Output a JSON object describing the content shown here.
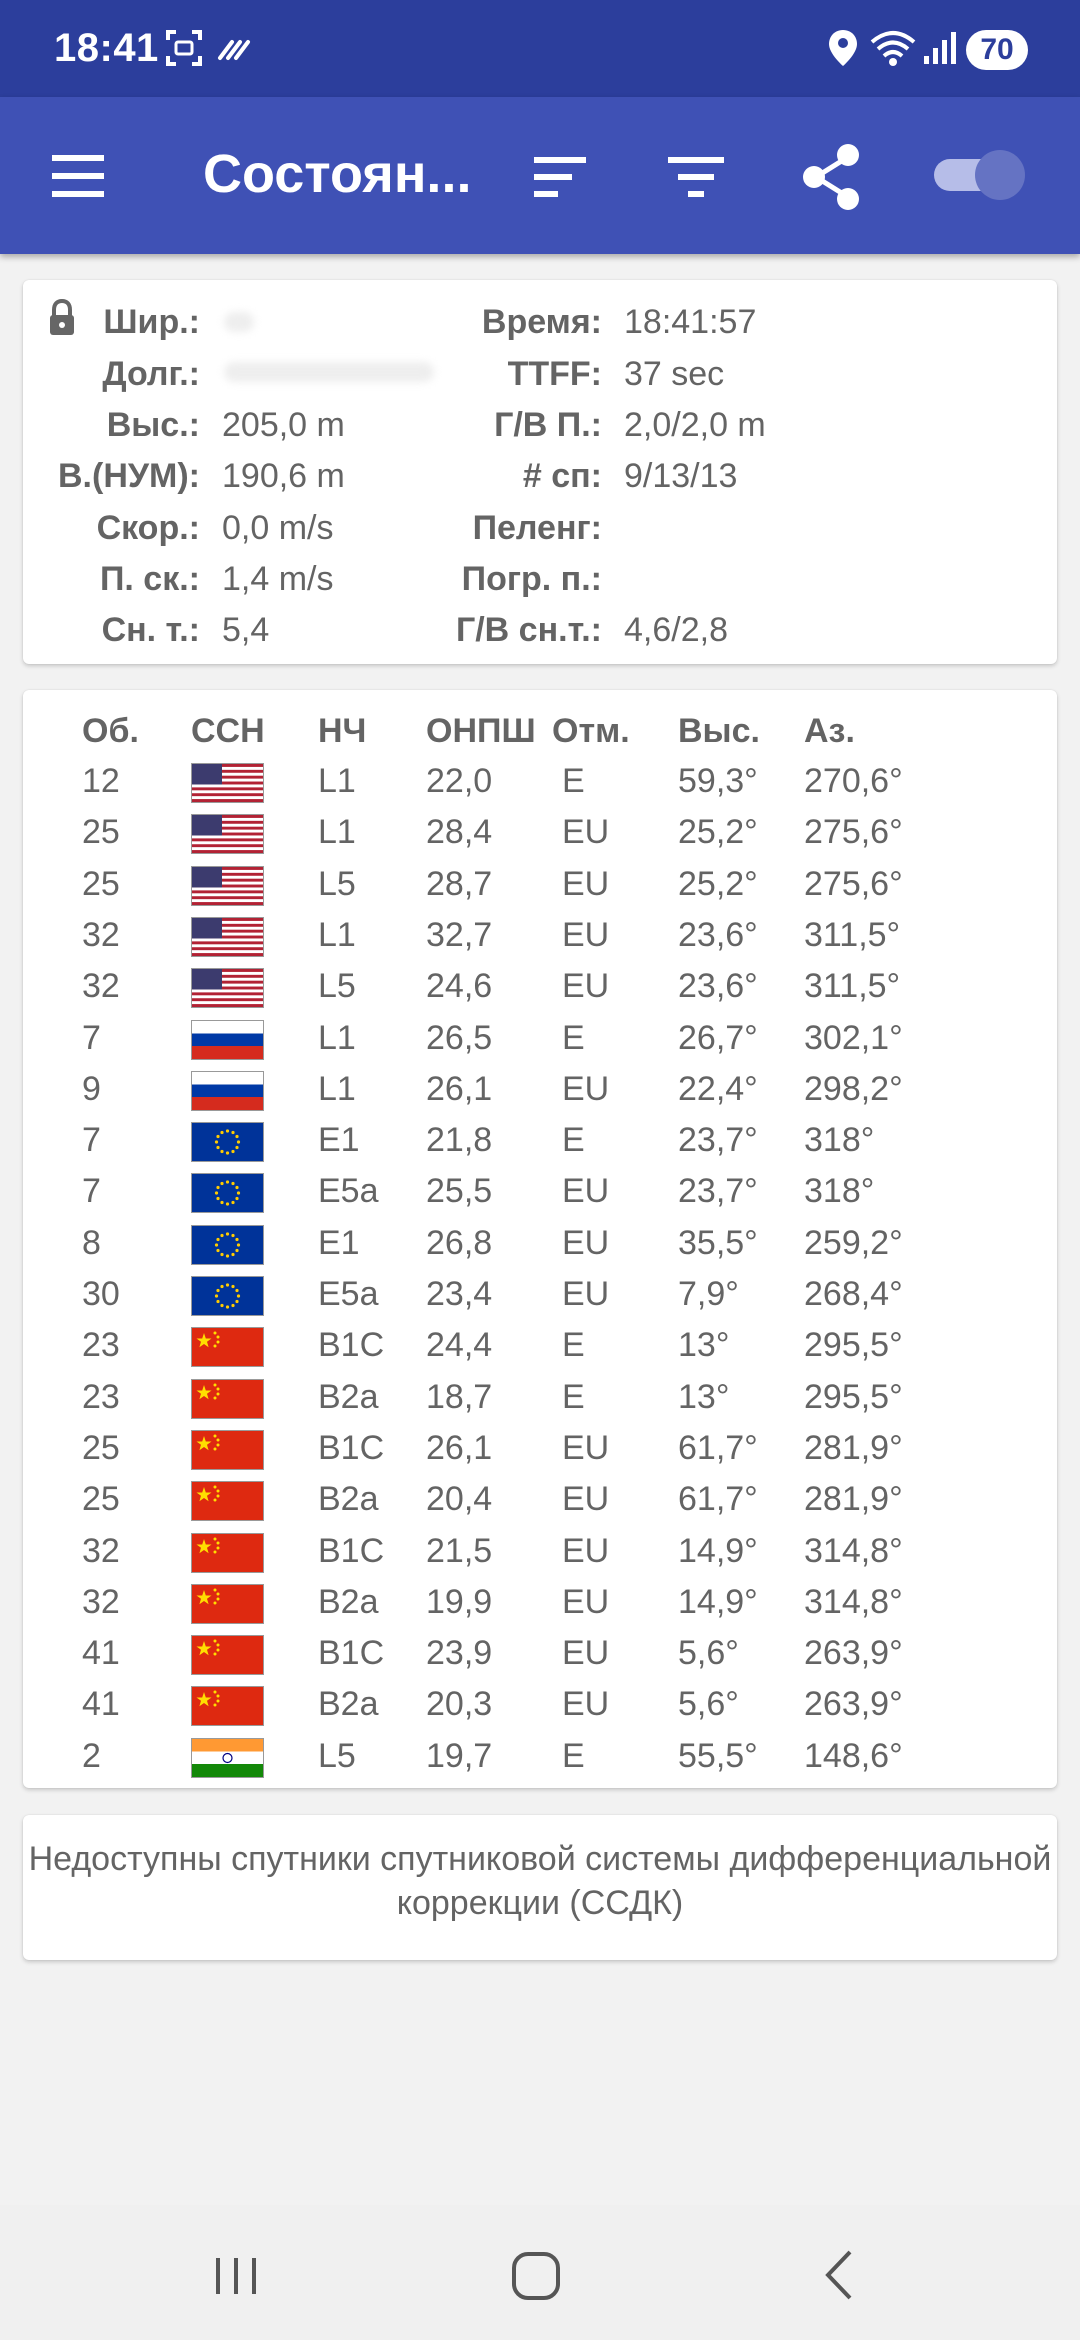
{
  "status_bar": {
    "time": "18:41",
    "battery": "70"
  },
  "app_bar": {
    "title": "Состоян..."
  },
  "status": {
    "lat_label": "Шир.:",
    "lat_value": "",
    "lon_label": "Долг.:",
    "lon_value": "",
    "alt_label": "Выс.:",
    "alt_value": "205,0 m",
    "msl_label": "В.(НУМ):",
    "msl_value": "190,6 m",
    "speed_label": "Скор.:",
    "speed_value": "0,0 m/s",
    "speed_acc_label": "П. ск.:",
    "speed_acc_value": "1,4 m/s",
    "pdop_label": "Сн. т.:",
    "pdop_value": "5,4",
    "time_label": "Время:",
    "time_value": "18:41:57",
    "ttff_label": "TTFF:",
    "ttff_value": "37 sec",
    "hv_acc_label": "Г/В П.:",
    "hv_acc_value": "2,0/2,0 m",
    "sats_label": "# сп:",
    "sats_value": "9/13/13",
    "bearing_label": "Пеленг:",
    "bearing_value": "",
    "bearing_acc_label": "Погр. п.:",
    "bearing_acc_value": "",
    "hv_dop_label": "Г/В сн.т.:",
    "hv_dop_value": "4,6/2,8"
  },
  "table": {
    "headers": {
      "id": "Об.",
      "gnss": "ССН",
      "cf": "НЧ",
      "cn0": "ОНПШ",
      "flags": "Отм.",
      "elev": "Выс.",
      "azim": "Аз."
    },
    "rows": [
      {
        "id": "12",
        "flag": "us",
        "cf": "L1",
        "cn0": "22,0",
        "flags": "E",
        "elev": "59,3°",
        "azim": "270,6°"
      },
      {
        "id": "25",
        "flag": "us",
        "cf": "L1",
        "cn0": "28,4",
        "flags": "EU",
        "elev": "25,2°",
        "azim": "275,6°"
      },
      {
        "id": "25",
        "flag": "us",
        "cf": "L5",
        "cn0": "28,7",
        "flags": "EU",
        "elev": "25,2°",
        "azim": "275,6°"
      },
      {
        "id": "32",
        "flag": "us",
        "cf": "L1",
        "cn0": "32,7",
        "flags": "EU",
        "elev": "23,6°",
        "azim": "311,5°"
      },
      {
        "id": "32",
        "flag": "us",
        "cf": "L5",
        "cn0": "24,6",
        "flags": "EU",
        "elev": "23,6°",
        "azim": "311,5°"
      },
      {
        "id": "7",
        "flag": "ru",
        "cf": "L1",
        "cn0": "26,5",
        "flags": "E",
        "elev": "26,7°",
        "azim": "302,1°"
      },
      {
        "id": "9",
        "flag": "ru",
        "cf": "L1",
        "cn0": "26,1",
        "flags": "EU",
        "elev": "22,4°",
        "azim": "298,2°"
      },
      {
        "id": "7",
        "flag": "eu",
        "cf": "E1",
        "cn0": "21,8",
        "flags": "E",
        "elev": "23,7°",
        "azim": "318°"
      },
      {
        "id": "7",
        "flag": "eu",
        "cf": "E5a",
        "cn0": "25,5",
        "flags": "EU",
        "elev": "23,7°",
        "azim": "318°"
      },
      {
        "id": "8",
        "flag": "eu",
        "cf": "E1",
        "cn0": "26,8",
        "flags": "EU",
        "elev": "35,5°",
        "azim": "259,2°"
      },
      {
        "id": "30",
        "flag": "eu",
        "cf": "E5a",
        "cn0": "23,4",
        "flags": "EU",
        "elev": "7,9°",
        "azim": "268,4°"
      },
      {
        "id": "23",
        "flag": "cn",
        "cf": "B1C",
        "cn0": "24,4",
        "flags": "E",
        "elev": "13°",
        "azim": "295,5°"
      },
      {
        "id": "23",
        "flag": "cn",
        "cf": "B2a",
        "cn0": "18,7",
        "flags": "E",
        "elev": "13°",
        "azim": "295,5°"
      },
      {
        "id": "25",
        "flag": "cn",
        "cf": "B1C",
        "cn0": "26,1",
        "flags": "EU",
        "elev": "61,7°",
        "azim": "281,9°"
      },
      {
        "id": "25",
        "flag": "cn",
        "cf": "B2a",
        "cn0": "20,4",
        "flags": "EU",
        "elev": "61,7°",
        "azim": "281,9°"
      },
      {
        "id": "32",
        "flag": "cn",
        "cf": "B1C",
        "cn0": "21,5",
        "flags": "EU",
        "elev": "14,9°",
        "azim": "314,8°"
      },
      {
        "id": "32",
        "flag": "cn",
        "cf": "B2a",
        "cn0": "19,9",
        "flags": "EU",
        "elev": "14,9°",
        "azim": "314,8°"
      },
      {
        "id": "41",
        "flag": "cn",
        "cf": "B1C",
        "cn0": "23,9",
        "flags": "EU",
        "elev": "5,6°",
        "azim": "263,9°"
      },
      {
        "id": "41",
        "flag": "cn",
        "cf": "B2a",
        "cn0": "20,3",
        "flags": "EU",
        "elev": "5,6°",
        "azim": "263,9°"
      },
      {
        "id": "2",
        "flag": "in",
        "cf": "L5",
        "cn0": "19,7",
        "flags": "E",
        "elev": "55,5°",
        "azim": "148,6°"
      }
    ]
  },
  "sbas": {
    "message": "Недоступны спутники спутниковой системы дифференциальной коррекции (ССДК)"
  },
  "colors": {
    "status_bar": "#2c3e9c",
    "app_bar": "#3f51b5",
    "toggle_thumb": "#6573c3",
    "toggle_track": "#b6bde8"
  },
  "icons": [
    "screenshot-icon",
    "nfc-icon",
    "location-icon",
    "wifi-icon",
    "signal-icon",
    "menu-icon",
    "sort-icon",
    "filter-icon",
    "share-icon",
    "lock-icon",
    "recent-apps-icon",
    "home-icon",
    "back-icon"
  ]
}
